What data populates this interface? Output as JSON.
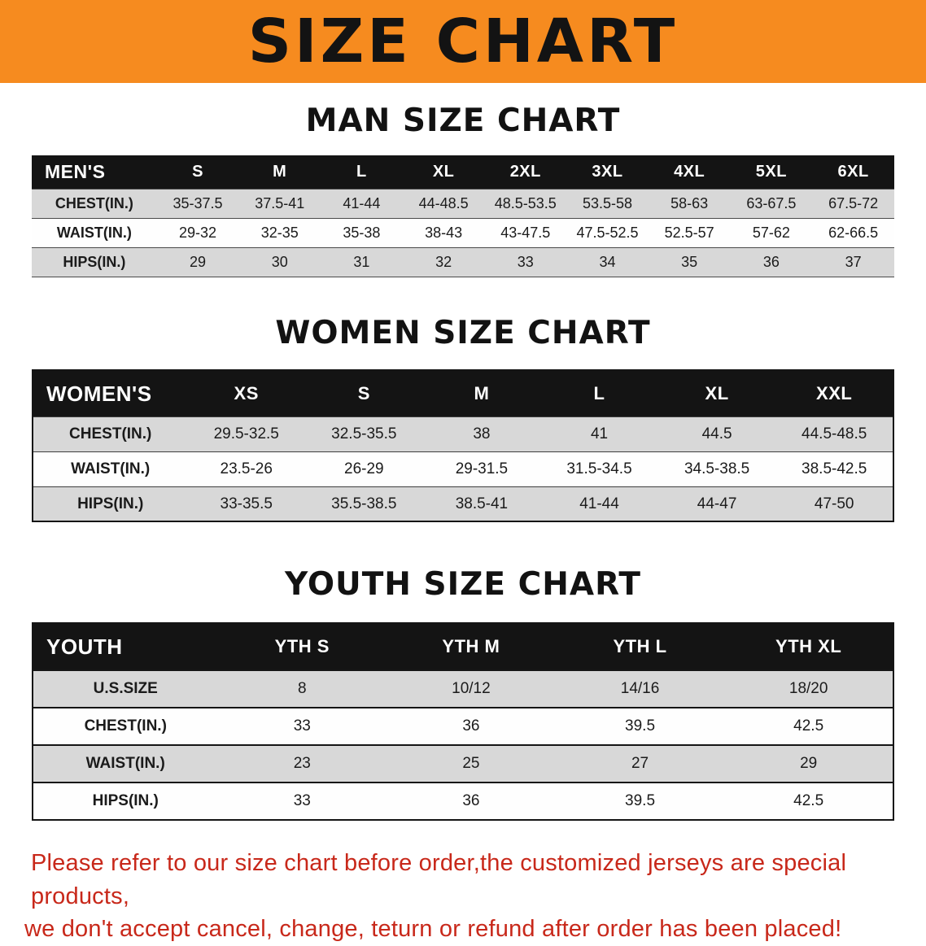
{
  "banner": {
    "title": "SIZE CHART"
  },
  "colors": {
    "banner-bg": "#f68b1f",
    "header-bg": "#141414",
    "row-gray": "#d8d8d8",
    "note-red": "#c8281a"
  },
  "sections": [
    {
      "heading": "MAN SIZE CHART",
      "table": {
        "header": [
          "MEN'S",
          "S",
          "M",
          "L",
          "XL",
          "2XL",
          "3XL",
          "4XL",
          "5XL",
          "6XL"
        ],
        "rows": [
          [
            "CHEST(IN.)",
            "35-37.5",
            "37.5-41",
            "41-44",
            "44-48.5",
            "48.5-53.5",
            "53.5-58",
            "58-63",
            "63-67.5",
            "67.5-72"
          ],
          [
            "WAIST(IN.)",
            "29-32",
            "32-35",
            "35-38",
            "38-43",
            "43-47.5",
            "47.5-52.5",
            "52.5-57",
            "57-62",
            "62-66.5"
          ],
          [
            "HIPS(IN.)",
            "29",
            "30",
            "31",
            "32",
            "33",
            "34",
            "35",
            "36",
            "37"
          ]
        ]
      }
    },
    {
      "heading": "WOMEN SIZE CHART",
      "table": {
        "header": [
          "WOMEN'S",
          "XS",
          "S",
          "M",
          "L",
          "XL",
          "XXL"
        ],
        "rows": [
          [
            "CHEST(IN.)",
            "29.5-32.5",
            "32.5-35.5",
            "38",
            "41",
            "44.5",
            "44.5-48.5"
          ],
          [
            "WAIST(IN.)",
            "23.5-26",
            "26-29",
            "29-31.5",
            "31.5-34.5",
            "34.5-38.5",
            "38.5-42.5"
          ],
          [
            "HIPS(IN.)",
            "33-35.5",
            "35.5-38.5",
            "38.5-41",
            "41-44",
            "44-47",
            "47-50"
          ]
        ]
      }
    },
    {
      "heading": "YOUTH SIZE CHART",
      "table": {
        "header": [
          "YOUTH",
          "YTH S",
          "YTH M",
          "YTH L",
          "YTH XL"
        ],
        "rows": [
          [
            "U.S.SIZE",
            "8",
            "10/12",
            "14/16",
            "18/20"
          ],
          [
            "CHEST(IN.)",
            "33",
            "36",
            "39.5",
            "42.5"
          ],
          [
            "WAIST(IN.)",
            "23",
            "25",
            "27",
            "29"
          ],
          [
            "HIPS(IN.)",
            "33",
            "36",
            "39.5",
            "42.5"
          ]
        ]
      }
    }
  ],
  "footer_note": {
    "line1": "Please refer to our size chart before order,the customized jerseys are special products,",
    "line2": "we don't accept cancel, change, teturn or refund after order has been placed!"
  }
}
